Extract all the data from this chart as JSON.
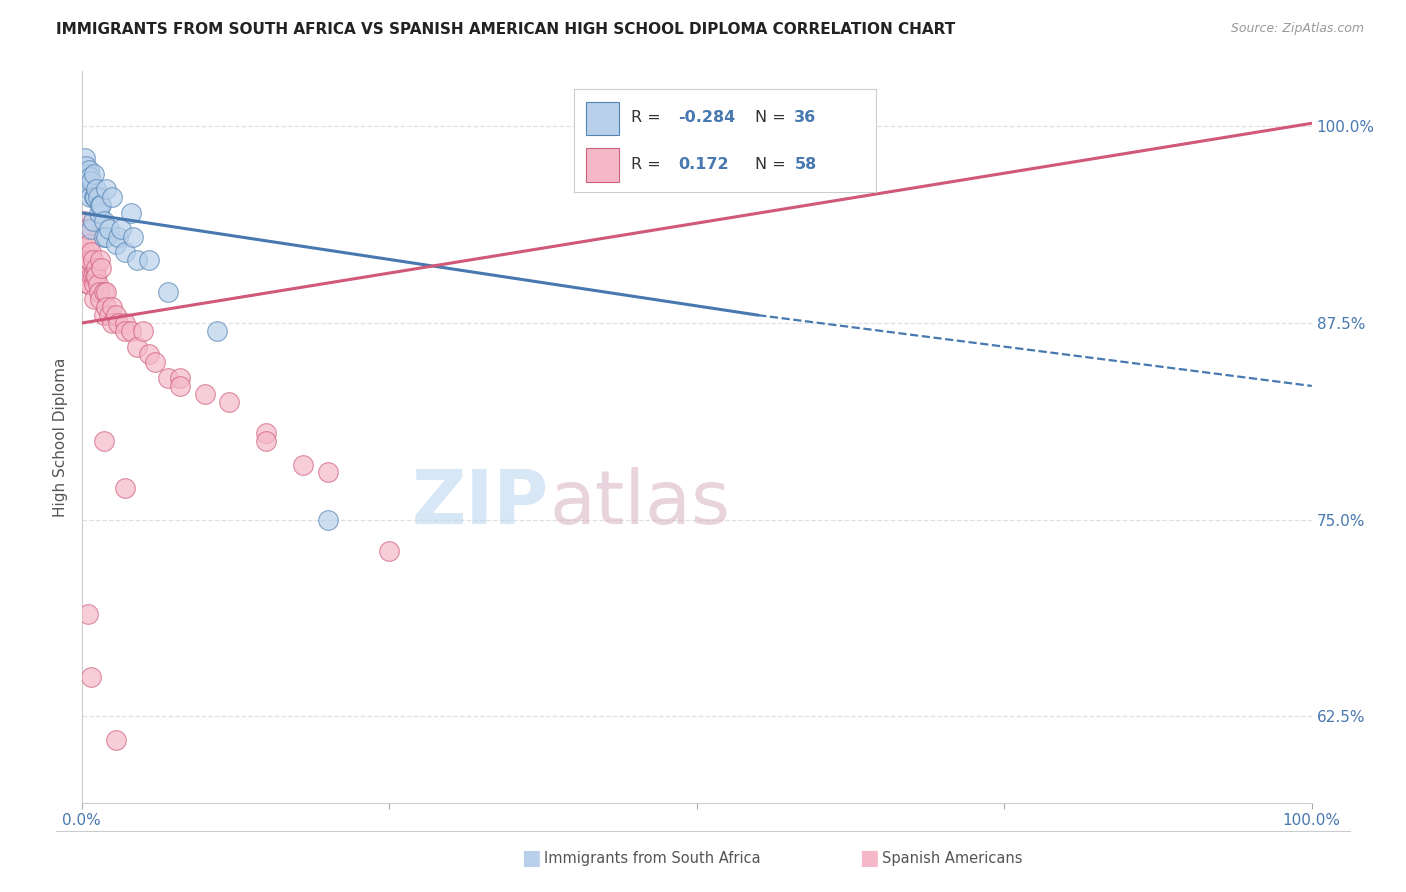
{
  "title": "IMMIGRANTS FROM SOUTH AFRICA VS SPANISH AMERICAN HIGH SCHOOL DIPLOMA CORRELATION CHART",
  "source": "Source: ZipAtlas.com",
  "ylabel": "High School Diploma",
  "right_ytick_labels": [
    "62.5%",
    "75.0%",
    "87.5%",
    "100.0%"
  ],
  "right_ytick_vals": [
    62.5,
    75.0,
    87.5,
    100.0
  ],
  "watermark_zip": "ZIP",
  "watermark_atlas": "atlas",
  "legend_r_blue": "-0.284",
  "legend_n_blue": "36",
  "legend_r_pink": "0.172",
  "legend_n_pink": "58",
  "blue_fill": "#b8d0ea",
  "blue_edge": "#5585b5",
  "pink_fill": "#f5b8c8",
  "pink_edge": "#d06080",
  "trend_blue_color": "#4878b0",
  "trend_pink_color": "#d05878",
  "xlim": [
    0.0,
    100.0
  ],
  "ylim": [
    57.0,
    103.5
  ],
  "bg_color": "#ffffff",
  "grid_color": "#e0e0e0",
  "blue_trend_x0": 0,
  "blue_trend_y0": 94.5,
  "blue_trend_x1": 55,
  "blue_trend_y1": 88.0,
  "blue_solid_end": 55,
  "blue_dashed_x1": 100,
  "blue_dashed_y1": 83.5,
  "pink_trend_x0": 0,
  "pink_trend_y0": 87.5,
  "pink_trend_x1": 100,
  "pink_trend_y1": 100.2,
  "blue_x": [
    0.3,
    0.4,
    0.5,
    0.5,
    0.6,
    0.6,
    0.7,
    0.7,
    0.8,
    0.8,
    0.9,
    1.0,
    1.0,
    1.1,
    1.2,
    1.3,
    1.4,
    1.5,
    1.6,
    1.8,
    1.8,
    2.0,
    2.0,
    2.2,
    2.5,
    2.8,
    3.0,
    3.2,
    3.5,
    4.0,
    4.2,
    4.5,
    5.5,
    7.0,
    11.0,
    20.0
  ],
  "blue_y": [
    98.0,
    97.5,
    97.0,
    96.5,
    97.2,
    96.0,
    96.8,
    95.5,
    96.5,
    93.5,
    94.0,
    97.0,
    95.5,
    95.5,
    96.0,
    95.5,
    94.5,
    95.0,
    95.0,
    94.0,
    93.0,
    96.0,
    93.0,
    93.5,
    95.5,
    92.5,
    93.0,
    93.5,
    92.0,
    94.5,
    93.0,
    91.5,
    91.5,
    89.5,
    87.0,
    75.0
  ],
  "pink_x": [
    0.2,
    0.3,
    0.3,
    0.4,
    0.4,
    0.4,
    0.5,
    0.5,
    0.5,
    0.6,
    0.6,
    0.6,
    0.7,
    0.8,
    0.8,
    0.9,
    0.9,
    1.0,
    1.0,
    1.1,
    1.2,
    1.2,
    1.3,
    1.4,
    1.5,
    1.5,
    1.6,
    1.8,
    1.8,
    2.0,
    2.0,
    2.2,
    2.5,
    2.5,
    2.8,
    3.0,
    3.5,
    3.5,
    4.0,
    4.5,
    5.0,
    5.5,
    6.0,
    7.0,
    8.0,
    8.0,
    10.0,
    12.0,
    15.0,
    15.0,
    18.0,
    20.0,
    25.0,
    1.8,
    3.5,
    0.5,
    0.8,
    2.8
  ],
  "pink_y": [
    94.0,
    93.5,
    92.0,
    93.0,
    91.5,
    90.5,
    93.5,
    91.0,
    90.0,
    92.5,
    91.5,
    90.0,
    91.5,
    92.0,
    90.5,
    91.5,
    90.5,
    90.0,
    89.0,
    90.5,
    91.0,
    90.5,
    90.0,
    89.5,
    91.5,
    89.0,
    91.0,
    89.5,
    88.0,
    89.5,
    88.5,
    88.0,
    88.5,
    87.5,
    88.0,
    87.5,
    87.5,
    87.0,
    87.0,
    86.0,
    87.0,
    85.5,
    85.0,
    84.0,
    84.0,
    83.5,
    83.0,
    82.5,
    80.5,
    80.0,
    78.5,
    78.0,
    73.0,
    80.0,
    77.0,
    69.0,
    65.0,
    61.0
  ]
}
